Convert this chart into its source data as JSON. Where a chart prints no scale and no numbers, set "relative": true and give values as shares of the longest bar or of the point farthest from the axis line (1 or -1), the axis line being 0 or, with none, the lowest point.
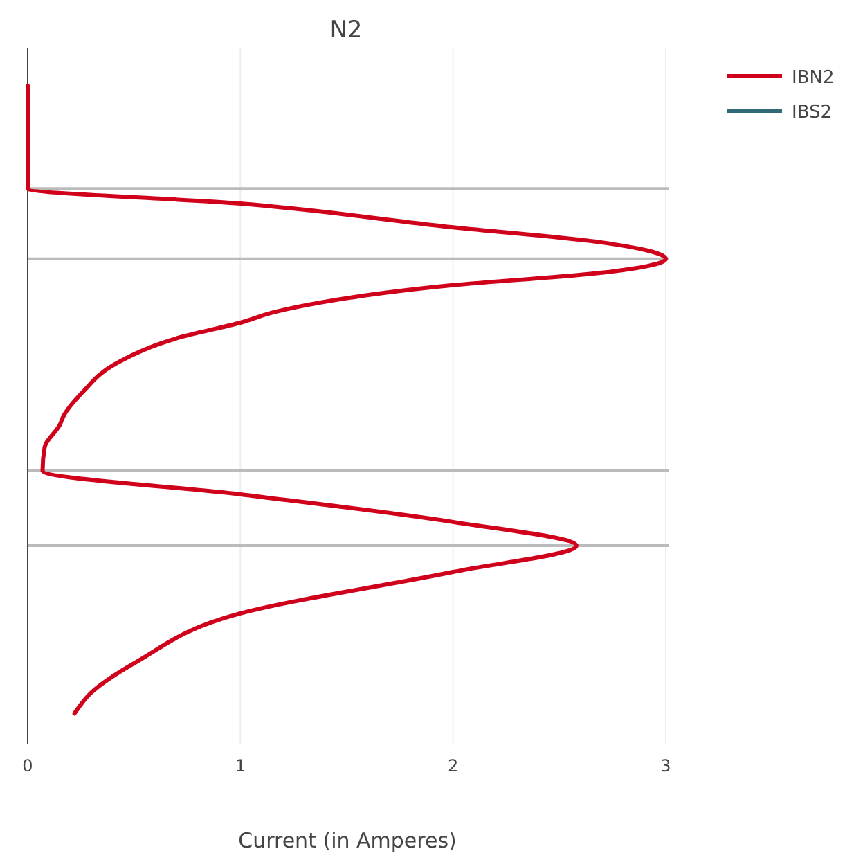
{
  "chart_data": {
    "type": "line",
    "title": "N2",
    "xlabel": "Current (in Amperes)",
    "relative": true,
    "xlim": [
      0,
      3
    ],
    "xticks": [
      0,
      1,
      2,
      3
    ],
    "grid": "x",
    "legend": "top right",
    "line_style": "solid",
    "marker": "none",
    "series": [
      {
        "name": "IBN2",
        "color": "#d0021b",
        "x": [
          0,
          0,
          1.0,
          2.0,
          2.7,
          3.0,
          2.7,
          2.0,
          1.17,
          1.0,
          0.73,
          0.41,
          0.26,
          0.17,
          0.15,
          0.08,
          0.07,
          1.0,
          2.0,
          2.58,
          2.0,
          1.0,
          0.52,
          0.3,
          0.22
        ],
        "values": [
          1.0,
          0.844,
          0.821,
          0.785,
          0.762,
          0.737,
          0.716,
          0.697,
          0.657,
          0.64,
          0.619,
          0.577,
          0.535,
          0.499,
          0.484,
          0.451,
          0.415,
          0.379,
          0.337,
          0.301,
          0.261,
          0.198,
          0.126,
          0.078,
          0.046
        ]
      },
      {
        "name": "IBS2",
        "color": "#2e6b74"
      }
    ],
    "ref_lines": [
      {
        "axis": "y",
        "value": 0.844,
        "color": "#bbbbbb"
      },
      {
        "axis": "y",
        "value": 0.737,
        "color": "#bbbbbb"
      },
      {
        "axis": "y",
        "value": 0.415,
        "color": "#bbbbbb"
      },
      {
        "axis": "y",
        "value": 0.301,
        "color": "#bbbbbb"
      }
    ]
  }
}
